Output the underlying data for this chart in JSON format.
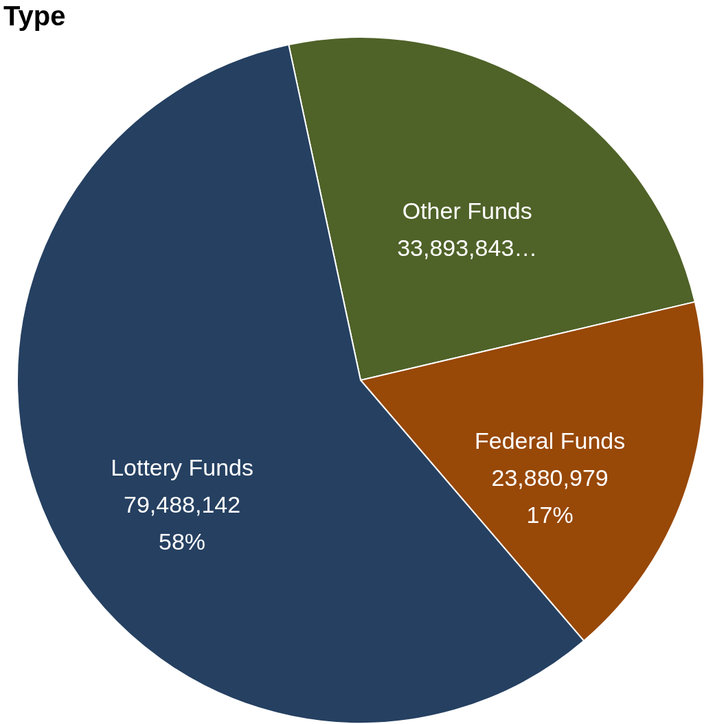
{
  "chart_data": {
    "type": "pie",
    "title": "Type",
    "categories": [
      "Other Funds",
      "Federal Funds",
      "Lottery Funds"
    ],
    "values": [
      33893843,
      23880979,
      79488142
    ],
    "colors": [
      "#4f6228",
      "#984807",
      "#254061"
    ],
    "value_labels": [
      "33,893,843…",
      "23,880,979\n17%",
      "79,488,142\n58%"
    ]
  }
}
